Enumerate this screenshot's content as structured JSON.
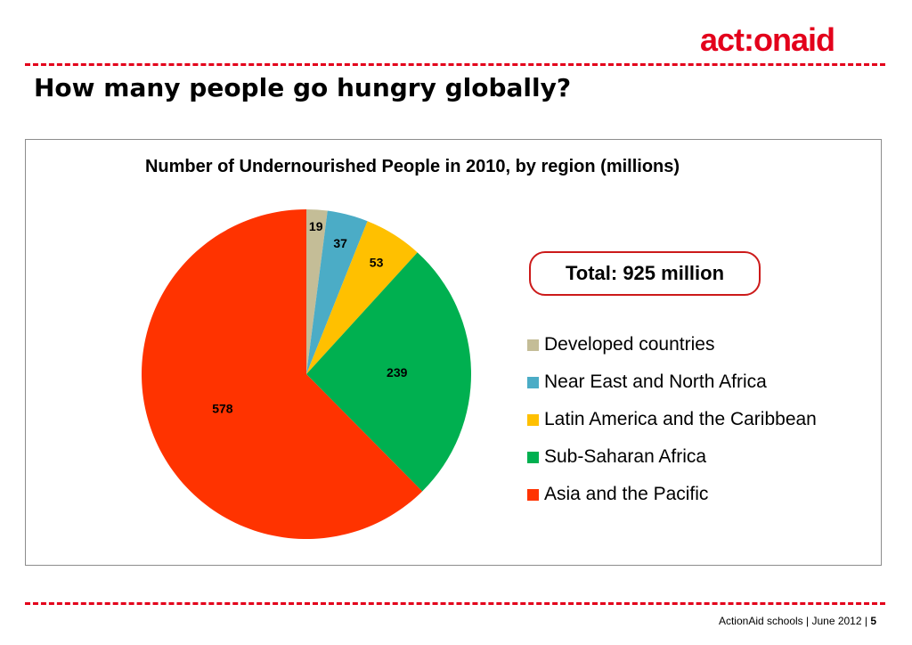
{
  "header": {
    "logo_text": "act:onaid",
    "page_title": "How many people go hungry globally?"
  },
  "colors": {
    "brand_red": "#e3001b",
    "frame_gray": "#8c8c8c"
  },
  "total": {
    "label": "Total: 925 million"
  },
  "footer": {
    "text": "ActionAid schools  |  June 2012  | ",
    "page_number": "5"
  },
  "chart_data": {
    "type": "pie",
    "title": "Number of Undernourished People in 2010, by region (millions)",
    "legend_position": "right",
    "start_angle_deg": 0,
    "direction": "clockwise",
    "categories": [
      "Developed countries",
      "Near East and North Africa",
      "Latin America and the Caribbean",
      "Sub-Saharan Africa",
      "Asia and the Pacific"
    ],
    "values": [
      19,
      37,
      53,
      239,
      578
    ],
    "colors": [
      "#c4bd97",
      "#4bacc6",
      "#ffc000",
      "#00b050",
      "#ff3300"
    ],
    "data_labels": [
      "19",
      "37",
      "53",
      "239",
      "578"
    ]
  }
}
